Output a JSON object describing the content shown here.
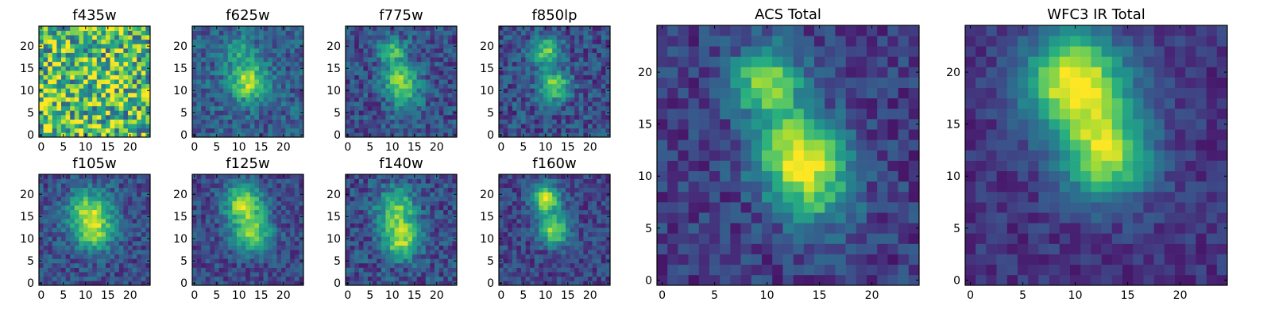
{
  "figure": {
    "background": "#ffffff"
  },
  "chart_data": [
    {
      "type": "heatmap",
      "title": "f435w",
      "grid_size": 25,
      "xticks": [
        0,
        5,
        10,
        15,
        20
      ],
      "yticks": [
        0,
        5,
        10,
        15,
        20
      ],
      "xlim": [
        0,
        24
      ],
      "ylim": [
        0,
        24
      ],
      "colormap": "viridis",
      "noise": 0.42,
      "blobs": [
        [
          12,
          11,
          2.5,
          0.1
        ]
      ],
      "base": 0.7
    },
    {
      "type": "heatmap",
      "title": "f625w",
      "grid_size": 25,
      "xticks": [
        0,
        5,
        10,
        15,
        20
      ],
      "yticks": [
        0,
        5,
        10,
        15,
        20
      ],
      "xlim": [
        0,
        24
      ],
      "ylim": [
        0,
        24
      ],
      "colormap": "viridis",
      "noise": 0.22,
      "blobs": [
        [
          12,
          12,
          3.0,
          0.35
        ],
        [
          10,
          19,
          2.5,
          0.15
        ]
      ],
      "base": 0.55
    },
    {
      "type": "heatmap",
      "title": "f775w",
      "grid_size": 25,
      "xticks": [
        0,
        5,
        10,
        15,
        20
      ],
      "yticks": [
        0,
        5,
        10,
        15,
        20
      ],
      "xlim": [
        0,
        24
      ],
      "ylim": [
        0,
        24
      ],
      "colormap": "viridis",
      "noise": 0.22,
      "blobs": [
        [
          10,
          19,
          2.2,
          0.3
        ],
        [
          12,
          12,
          2.6,
          0.35
        ],
        [
          13,
          7,
          2.5,
          0.15
        ]
      ],
      "base": 0.45
    },
    {
      "type": "heatmap",
      "title": "f850lp",
      "grid_size": 25,
      "xticks": [
        0,
        5,
        10,
        15,
        20
      ],
      "yticks": [
        0,
        5,
        10,
        15,
        20
      ],
      "xlim": [
        0,
        24
      ],
      "ylim": [
        0,
        24
      ],
      "colormap": "viridis",
      "noise": 0.22,
      "blobs": [
        [
          10,
          19,
          2.2,
          0.33
        ],
        [
          12,
          11,
          2.4,
          0.35
        ]
      ],
      "base": 0.45
    },
    {
      "type": "heatmap",
      "title": "ACS Total",
      "grid_size": 25,
      "xticks": [
        0,
        5,
        10,
        15,
        20
      ],
      "yticks": [
        0,
        5,
        10,
        15,
        20
      ],
      "xlim": [
        0,
        24
      ],
      "ylim": [
        0,
        24
      ],
      "colormap": "viridis",
      "noise": 0.18,
      "blobs": [
        [
          10,
          19,
          2.3,
          0.42
        ],
        [
          13,
          12,
          2.8,
          0.5
        ],
        [
          15,
          8,
          2.5,
          0.2
        ]
      ],
      "base": 0.35
    },
    {
      "type": "heatmap",
      "title": "f105w",
      "grid_size": 25,
      "xticks": [
        0,
        5,
        10,
        15,
        20
      ],
      "yticks": [
        0,
        5,
        10,
        15,
        20
      ],
      "xlim": [
        0,
        24
      ],
      "ylim": [
        0,
        24
      ],
      "colormap": "viridis",
      "noise": 0.2,
      "blobs": [
        [
          11,
          16,
          3.5,
          0.35
        ],
        [
          12,
          11,
          3.0,
          0.25
        ]
      ],
      "base": 0.45
    },
    {
      "type": "heatmap",
      "title": "f125w",
      "grid_size": 25,
      "xticks": [
        0,
        5,
        10,
        15,
        20
      ],
      "yticks": [
        0,
        5,
        10,
        15,
        20
      ],
      "xlim": [
        0,
        24
      ],
      "ylim": [
        0,
        24
      ],
      "colormap": "viridis",
      "noise": 0.18,
      "blobs": [
        [
          11,
          18,
          3.0,
          0.4
        ],
        [
          13,
          11,
          3.0,
          0.35
        ]
      ],
      "base": 0.42
    },
    {
      "type": "heatmap",
      "title": "f140w",
      "grid_size": 25,
      "xticks": [
        0,
        5,
        10,
        15,
        20
      ],
      "yticks": [
        0,
        5,
        10,
        15,
        20
      ],
      "xlim": [
        0,
        24
      ],
      "ylim": [
        0,
        24
      ],
      "colormap": "viridis",
      "noise": 0.22,
      "blobs": [
        [
          11,
          17,
          3.0,
          0.32
        ],
        [
          12,
          10,
          3.0,
          0.38
        ]
      ],
      "base": 0.45
    },
    {
      "type": "heatmap",
      "title": "f160w",
      "grid_size": 25,
      "xticks": [
        0,
        5,
        10,
        15,
        20
      ],
      "yticks": [
        0,
        5,
        10,
        15,
        20
      ],
      "xlim": [
        0,
        24
      ],
      "ylim": [
        0,
        24
      ],
      "colormap": "viridis",
      "noise": 0.18,
      "blobs": [
        [
          10,
          19,
          2.2,
          0.45
        ],
        [
          12,
          12,
          2.3,
          0.4
        ]
      ],
      "base": 0.4
    },
    {
      "type": "heatmap",
      "title": "WFC3 IR Total",
      "grid_size": 25,
      "xticks": [
        0,
        5,
        10,
        15,
        20
      ],
      "yticks": [
        0,
        5,
        10,
        15,
        20
      ],
      "xlim": [
        0,
        24
      ],
      "ylim": [
        0,
        24
      ],
      "colormap": "viridis",
      "noise": 0.12,
      "blobs": [
        [
          10,
          19,
          3.2,
          0.55
        ],
        [
          13,
          12,
          3.0,
          0.45
        ]
      ],
      "base": 0.3
    }
  ]
}
